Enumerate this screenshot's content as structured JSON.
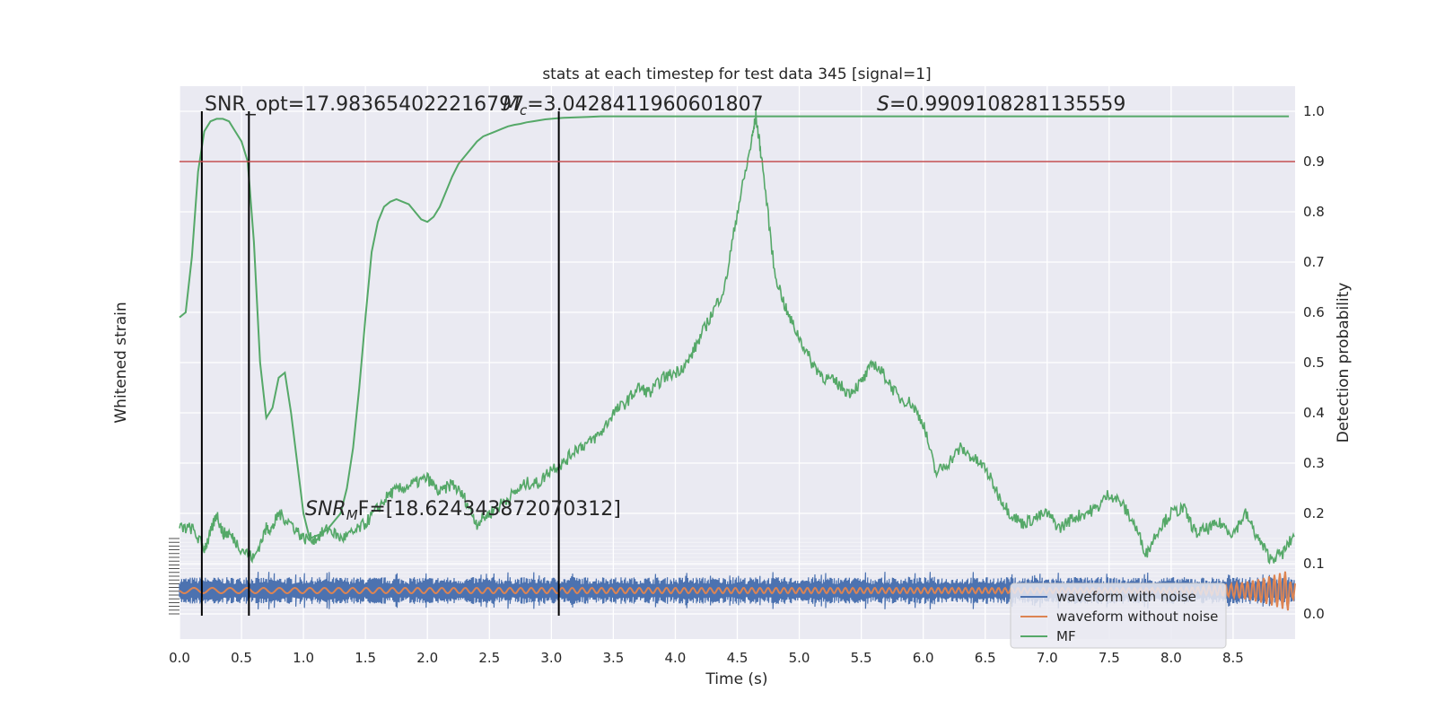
{
  "chart_data": {
    "type": "line",
    "title": "stats at each timestep for test data 345 [signal=1]",
    "xlabel": "Time (s)",
    "ylabel_left": "Whitened strain",
    "ylabel_right": "Detection probability",
    "xlim": [
      0,
      9.0
    ],
    "ylim_right": [
      -0.05,
      1.05
    ],
    "x_ticks": [
      "0.0",
      "0.5",
      "1.0",
      "1.5",
      "2.0",
      "2.5",
      "3.0",
      "3.5",
      "4.0",
      "4.5",
      "5.0",
      "5.5",
      "6.0",
      "6.5",
      "7.0",
      "7.5",
      "8.0",
      "8.5"
    ],
    "y_ticks_right": [
      "0.0",
      "0.1",
      "0.2",
      "0.3",
      "0.4",
      "0.5",
      "0.6",
      "0.7",
      "0.8",
      "0.9",
      "1.0"
    ],
    "threshold": 0.9,
    "grid": true,
    "legend_position": "bottom-right",
    "annotations": {
      "snr_opt": "SNR_opt=17.983654022216797",
      "mchirp": "M",
      "mchirp_sub": "c",
      "mchirp_value": "=3.0428411960601807",
      "s_label": "S",
      "s_value": "=0.9909108281135559",
      "snr_mf": "SNR",
      "snr_mf_sub": "M",
      "snr_mf_value": "F=[18.624343872070312]"
    },
    "vertical_lines": [
      0.18,
      0.56,
      3.06
    ],
    "series": [
      {
        "name": "waveform with noise",
        "color": "#4c72b0",
        "style": "noise band",
        "x": [
          0,
          9.0
        ],
        "y": [
          -1.0,
          1.0
        ]
      },
      {
        "name": "waveform without noise",
        "color": "#dd8452",
        "style": "chirp",
        "x": [
          0,
          7.8,
          8.5,
          8.85,
          8.95,
          9.0
        ],
        "y": [
          0.1,
          0.12,
          0.25,
          0.6,
          0.9,
          0.5
        ]
      },
      {
        "name": "MF",
        "color": "#55a868",
        "x": [
          0.0,
          0.05,
          0.1,
          0.15,
          0.2,
          0.25,
          0.3,
          0.35,
          0.4,
          0.45,
          0.5,
          0.55,
          0.6,
          0.65,
          0.7,
          0.75,
          0.8,
          0.85,
          0.9,
          0.95,
          1.0,
          1.05,
          1.1,
          1.15,
          1.2,
          1.25,
          1.3,
          1.35,
          1.4,
          1.45,
          1.5,
          1.55,
          1.6,
          1.65,
          1.7,
          1.75,
          1.8,
          1.85,
          1.9,
          1.95,
          2.0,
          2.05,
          2.1,
          2.15,
          2.2,
          2.25,
          2.3,
          2.35,
          2.4,
          2.45,
          2.5,
          2.55,
          2.6,
          2.65,
          2.7,
          2.75,
          2.8,
          2.85,
          2.9,
          2.95,
          3.0,
          3.05,
          3.1,
          3.2,
          3.3,
          3.4,
          3.5,
          3.6,
          3.7,
          3.8,
          3.9,
          4.0,
          4.2,
          4.4,
          4.6,
          4.8,
          5.0,
          5.5,
          6.0,
          6.5,
          7.0,
          7.5,
          8.0,
          8.5,
          8.95
        ],
        "y": [
          0.59,
          0.6,
          0.71,
          0.88,
          0.96,
          0.98,
          0.985,
          0.985,
          0.98,
          0.96,
          0.94,
          0.9,
          0.74,
          0.5,
          0.39,
          0.41,
          0.47,
          0.48,
          0.4,
          0.3,
          0.2,
          0.15,
          0.155,
          0.16,
          0.17,
          0.185,
          0.2,
          0.25,
          0.33,
          0.45,
          0.59,
          0.72,
          0.78,
          0.81,
          0.82,
          0.825,
          0.82,
          0.815,
          0.8,
          0.785,
          0.78,
          0.79,
          0.81,
          0.84,
          0.87,
          0.895,
          0.91,
          0.925,
          0.94,
          0.95,
          0.955,
          0.96,
          0.965,
          0.97,
          0.973,
          0.975,
          0.978,
          0.98,
          0.982,
          0.984,
          0.985,
          0.986,
          0.987,
          0.988,
          0.989,
          0.99,
          0.99,
          0.99,
          0.99,
          0.99,
          0.99,
          0.99,
          0.99,
          0.99,
          0.99,
          0.99,
          0.99,
          0.99,
          0.99,
          0.99,
          0.99,
          0.99,
          0.99,
          0.99,
          0.99
        ]
      },
      {
        "name": "MF",
        "color": "#55a868",
        "style": "noisy",
        "x": [
          0.0,
          0.1,
          0.2,
          0.25,
          0.3,
          0.35,
          0.4,
          0.5,
          0.6,
          0.7,
          0.75,
          0.8,
          0.9,
          1.0,
          1.1,
          1.2,
          1.3,
          1.4,
          1.5,
          1.6,
          1.7,
          1.8,
          1.9,
          2.0,
          2.1,
          2.2,
          2.3,
          2.4,
          2.5,
          2.6,
          2.7,
          2.8,
          2.9,
          3.0,
          3.1,
          3.2,
          3.3,
          3.4,
          3.5,
          3.6,
          3.7,
          3.8,
          3.9,
          4.0,
          4.1,
          4.2,
          4.3,
          4.4,
          4.5,
          4.6,
          4.65,
          4.7,
          4.8,
          4.9,
          5.0,
          5.1,
          5.2,
          5.3,
          5.4,
          5.5,
          5.6,
          5.7,
          5.8,
          5.9,
          6.0,
          6.1,
          6.2,
          6.3,
          6.4,
          6.5,
          6.6,
          6.7,
          6.8,
          6.9,
          7.0,
          7.1,
          7.2,
          7.3,
          7.4,
          7.5,
          7.6,
          7.7,
          7.8,
          7.9,
          8.0,
          8.1,
          8.2,
          8.3,
          8.4,
          8.5,
          8.6,
          8.7,
          8.8,
          8.9,
          9.0
        ],
        "y": [
          0.17,
          0.17,
          0.13,
          0.16,
          0.2,
          0.16,
          0.16,
          0.13,
          0.11,
          0.17,
          0.17,
          0.2,
          0.18,
          0.15,
          0.15,
          0.17,
          0.15,
          0.16,
          0.18,
          0.21,
          0.24,
          0.25,
          0.26,
          0.27,
          0.24,
          0.26,
          0.23,
          0.18,
          0.2,
          0.22,
          0.24,
          0.26,
          0.26,
          0.29,
          0.3,
          0.33,
          0.34,
          0.36,
          0.4,
          0.42,
          0.45,
          0.44,
          0.47,
          0.48,
          0.5,
          0.55,
          0.6,
          0.65,
          0.8,
          0.92,
          0.99,
          0.9,
          0.68,
          0.6,
          0.55,
          0.5,
          0.47,
          0.46,
          0.44,
          0.46,
          0.5,
          0.47,
          0.43,
          0.42,
          0.38,
          0.28,
          0.3,
          0.33,
          0.31,
          0.29,
          0.24,
          0.2,
          0.18,
          0.19,
          0.2,
          0.17,
          0.19,
          0.2,
          0.21,
          0.24,
          0.22,
          0.18,
          0.12,
          0.17,
          0.2,
          0.21,
          0.16,
          0.17,
          0.18,
          0.16,
          0.2,
          0.15,
          0.11,
          0.12,
          0.16
        ]
      }
    ],
    "legend": [
      "waveform with noise",
      "waveform without noise",
      "MF"
    ]
  }
}
